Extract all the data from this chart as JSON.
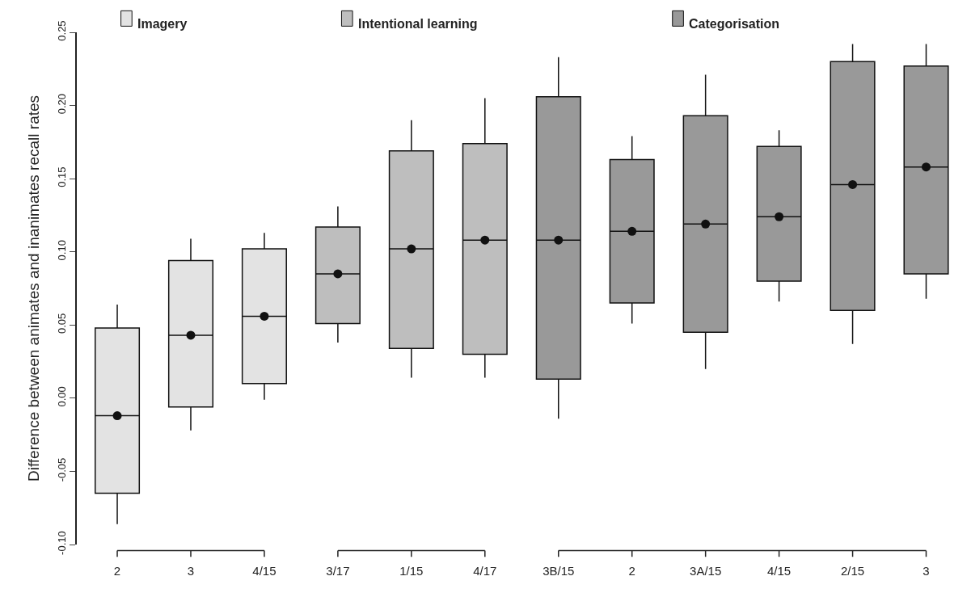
{
  "chart_data": {
    "type": "box",
    "ylabel": "Difference between animates and inanimates recall rates",
    "categories": [
      "2",
      "3",
      "4/15",
      "3/17",
      "1/15",
      "4/17",
      "3B/15",
      "2",
      "3A/15",
      "4/15",
      "2/15",
      "3"
    ],
    "ylim": [
      -0.1,
      0.25
    ],
    "legend": "top",
    "yticks": [
      {
        "value": -0.1,
        "label": "-0.10"
      },
      {
        "value": -0.05,
        "label": "-0.05"
      },
      {
        "value": 0,
        "label": "0.00"
      },
      {
        "value": 0.05,
        "label": "0.05"
      },
      {
        "value": 0.1,
        "label": "0.10"
      },
      {
        "value": 0.15,
        "label": "0.15"
      },
      {
        "value": 0.2,
        "label": "0.20"
      },
      {
        "value": 0.25,
        "label": "0.25"
      }
    ],
    "series": [
      {
        "name": "Imagery",
        "color": "#e3e3e3",
        "boxes": [
          {
            "low": -0.086,
            "q1": -0.065,
            "median": -0.012,
            "q3": 0.048,
            "high": 0.064
          },
          {
            "low": -0.022,
            "q1": -0.006,
            "median": 0.043,
            "q3": 0.094,
            "high": 0.109
          },
          {
            "low": -0.001,
            "q1": 0.01,
            "median": 0.056,
            "q3": 0.102,
            "high": 0.113
          },
          null,
          null,
          null,
          null,
          null,
          null,
          null,
          null,
          null
        ]
      },
      {
        "name": "Intentional learning",
        "color": "#bebebe",
        "boxes": [
          null,
          null,
          null,
          {
            "low": 0.038,
            "q1": 0.051,
            "median": 0.085,
            "q3": 0.117,
            "high": 0.131
          },
          {
            "low": 0.014,
            "q1": 0.034,
            "median": 0.102,
            "q3": 0.169,
            "high": 0.19
          },
          {
            "low": 0.014,
            "q1": 0.03,
            "median": 0.108,
            "q3": 0.174,
            "high": 0.205
          },
          null,
          null,
          null,
          null,
          null,
          null
        ]
      },
      {
        "type": "scatter",
        "color": "#111111",
        "marker": "circle",
        "values": [
          -0.012,
          0.043,
          0.056,
          0.085,
          0.102,
          0.108,
          0.108,
          0.114,
          0.119,
          0.124,
          0.146,
          0.158
        ]
      },
      {
        "name": "Categorisation",
        "color": "#999999",
        "boxes": [
          null,
          null,
          null,
          null,
          null,
          null,
          {
            "low": -0.014,
            "q1": 0.013,
            "median": 0.108,
            "q3": 0.206,
            "high": 0.233
          },
          {
            "low": 0.051,
            "q1": 0.065,
            "median": 0.114,
            "q3": 0.163,
            "high": 0.179
          },
          {
            "low": 0.02,
            "q1": 0.045,
            "median": 0.119,
            "q3": 0.193,
            "high": 0.221
          },
          {
            "low": 0.066,
            "q1": 0.08,
            "median": 0.124,
            "q3": 0.172,
            "high": 0.183
          },
          {
            "low": 0.037,
            "q1": 0.06,
            "median": 0.146,
            "q3": 0.23,
            "high": 0.242
          },
          {
            "low": 0.068,
            "q1": 0.085,
            "median": 0.158,
            "q3": 0.227,
            "high": 0.242
          }
        ]
      }
    ]
  }
}
